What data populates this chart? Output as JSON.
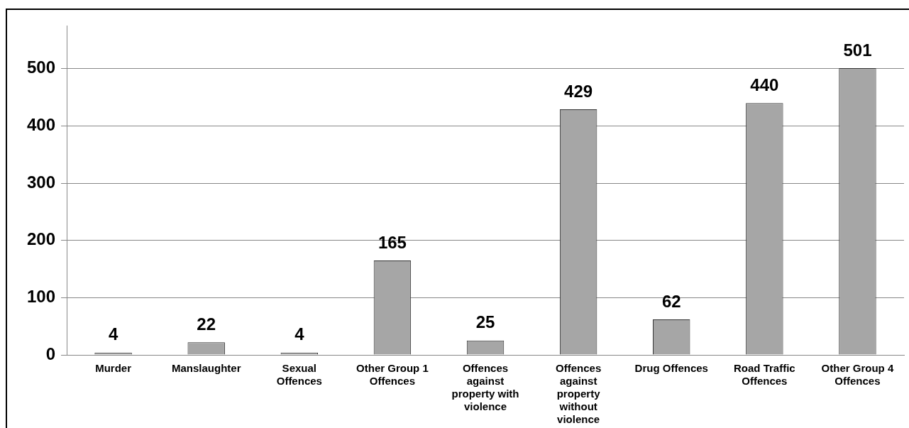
{
  "chart_data": {
    "type": "bar",
    "categories": [
      "Murder",
      "Manslaughter",
      "Sexual Offences",
      "Other Group 1 Offences",
      "Offences against property with violence",
      "Offences against property without violence",
      "Drug Offences",
      "Road Traffic Offences",
      "Other Group 4 Offences"
    ],
    "values": [
      4,
      22,
      4,
      165,
      25,
      429,
      62,
      440,
      501
    ],
    "color": "#a6a6a6",
    "ylim": [
      0,
      575
    ],
    "yticks": [
      0,
      100,
      200,
      300,
      400,
      500
    ],
    "grid": "y",
    "data_labels": true,
    "legend": false
  }
}
